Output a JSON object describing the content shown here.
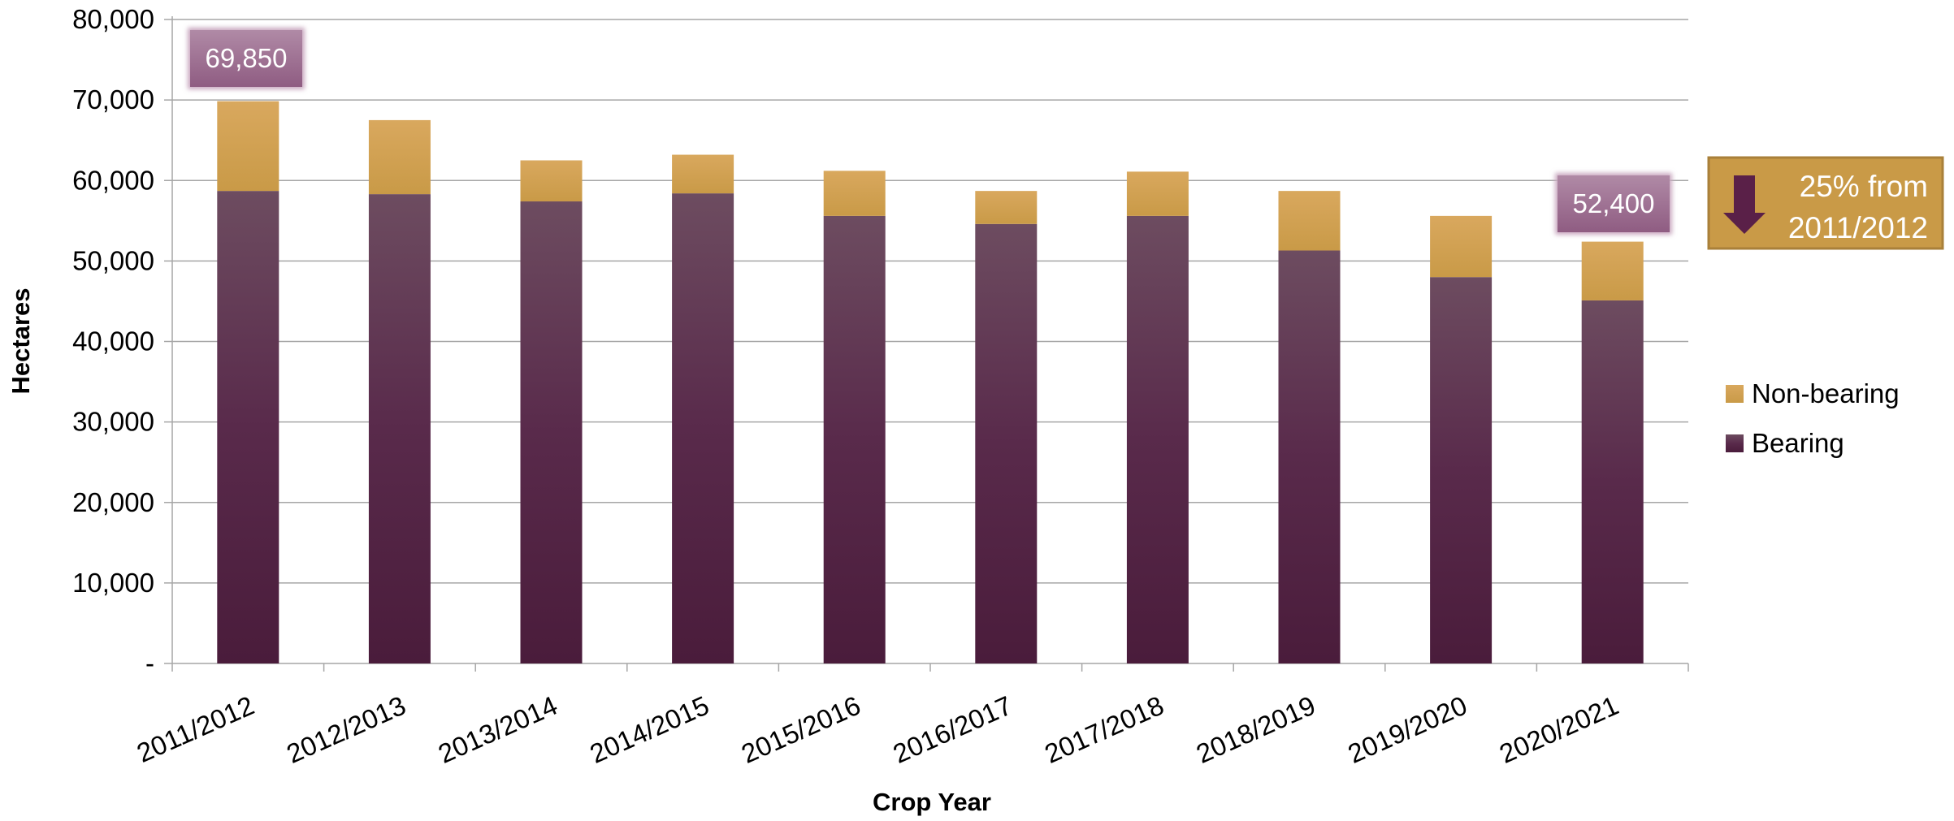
{
  "chart_data": {
    "type": "bar",
    "stacked": true,
    "title": "",
    "xlabel": "Crop Year",
    "ylabel": "Hectares",
    "ylim": [
      0,
      80000
    ],
    "y_ticks": [
      0,
      10000,
      20000,
      30000,
      40000,
      50000,
      60000,
      70000,
      80000
    ],
    "y_tick_labels": [
      "-",
      "10,000",
      "20,000",
      "30,000",
      "40,000",
      "50,000",
      "60,000",
      "70,000",
      "80,000"
    ],
    "grid": true,
    "legend_position": "right",
    "categories": [
      "2011/2012",
      "2012/2013",
      "2013/2014",
      "2014/2015",
      "2015/2016",
      "2016/2017",
      "2017/2018",
      "2018/2019",
      "2019/2020",
      "2020/2021"
    ],
    "series": [
      {
        "name": "Bearing",
        "color": "#4f2140",
        "values": [
          58700,
          58300,
          57400,
          58400,
          55600,
          54600,
          55600,
          51300,
          48000,
          45100
        ]
      },
      {
        "name": "Non-bearing",
        "color": "#d4a24e",
        "values": [
          11150,
          9200,
          5100,
          4800,
          5600,
          4100,
          5500,
          7400,
          7600,
          7300
        ]
      }
    ],
    "annotations": [
      {
        "category": "2011/2012",
        "text": "69,850"
      },
      {
        "category": "2020/2021",
        "text": "52,400"
      }
    ],
    "note": {
      "line1": "25% from",
      "line2": "2011/2012",
      "icon": "down-arrow-icon",
      "background": "#c99a47"
    },
    "legend_order": [
      "Non-bearing",
      "Bearing"
    ]
  }
}
